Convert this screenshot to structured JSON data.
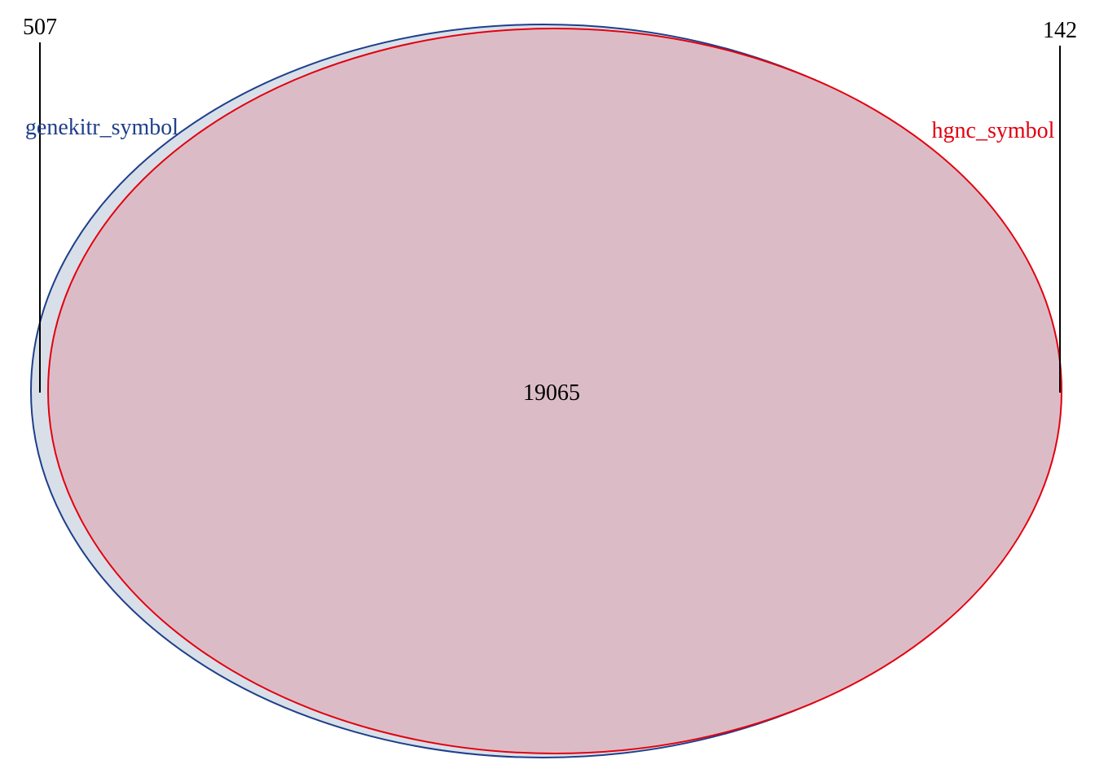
{
  "chart_data": {
    "type": "venn",
    "sets": [
      {
        "name": "genekitr_symbol",
        "color": "#1f3f8a",
        "fill": "#d8dfe9"
      },
      {
        "name": "hgnc_symbol",
        "color": "#e3000f",
        "fill": "#dbbcc6"
      }
    ],
    "regions": {
      "genekitr_symbol_only": "507",
      "hgnc_symbol_only": "142",
      "intersection": "19065"
    },
    "leader_line_color": "#000000"
  }
}
